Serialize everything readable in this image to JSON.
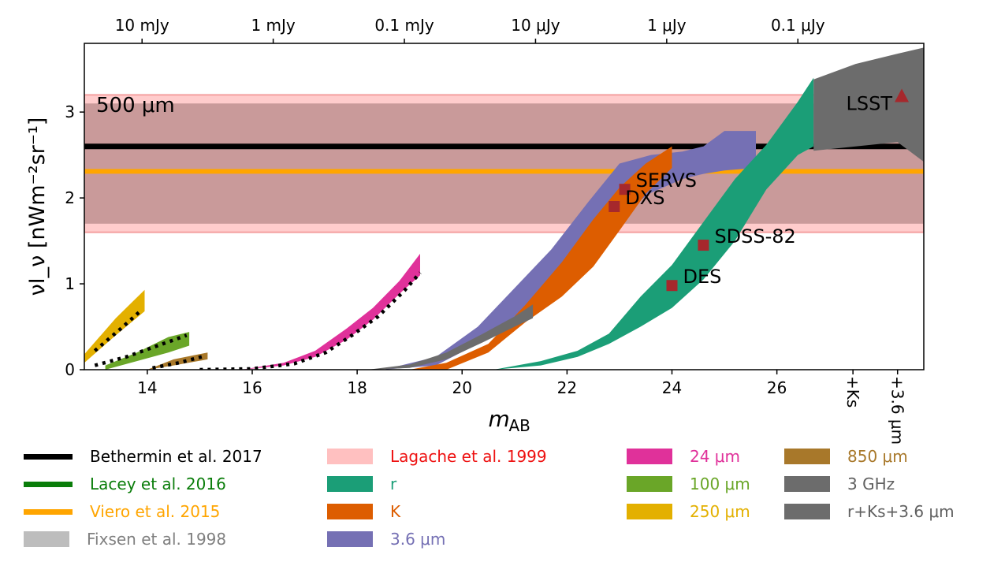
{
  "chart_data": {
    "type": "area",
    "xlabel": "m",
    "xlabel_sub": "AB",
    "ylabel": "νI_ν [nWm⁻²sr⁻¹]",
    "xlim": [
      12.8,
      28.8
    ],
    "ylim": [
      0,
      3.8
    ],
    "x_ticks": [
      14,
      16,
      18,
      20,
      22,
      24,
      26
    ],
    "x_tick_labels": [
      "14",
      "16",
      "18",
      "20",
      "22",
      "24",
      "26"
    ],
    "x_extra_labels": [
      {
        "label": "+Ks",
        "x": 27.45
      },
      {
        "label": "+3.6 μm",
        "x": 28.3
      }
    ],
    "y_ticks": [
      0,
      1,
      2,
      3
    ],
    "y_tick_labels": [
      "0",
      "1",
      "2",
      "3"
    ],
    "top_axis": {
      "ticks": [
        {
          "label": "10 mJy",
          "x": 13.9
        },
        {
          "label": "1 mJy",
          "x": 16.4
        },
        {
          "label": "0.1 mJy",
          "x": 18.9
        },
        {
          "label": "10 μJy",
          "x": 21.4
        },
        {
          "label": "1 μJy",
          "x": 23.9
        },
        {
          "label": "0.1 μJy",
          "x": 26.4
        }
      ]
    },
    "annotation": "500 μm",
    "bands": [
      {
        "name": "Lagache et al. 1999 (outer)",
        "ymin": 1.6,
        "ymax": 3.2,
        "color": "#ffcccc"
      },
      {
        "name": "Lagache et al. 1999 (inner)",
        "ymin": 1.7,
        "ymax": 3.1,
        "color": "#c99a9a"
      }
    ],
    "lines": [
      {
        "name": "Bethermin et al. 2017",
        "y": 2.6,
        "color": "#000000"
      },
      {
        "name": "Viero et al. 2015",
        "y": 2.31,
        "color": "#ffa500"
      }
    ],
    "series": [
      {
        "name": "850 μm",
        "color": "#a8782a",
        "x": [
          14.0,
          14.5,
          15.15
        ],
        "lower": [
          0.0,
          0.05,
          0.12
        ],
        "upper": [
          0.0,
          0.12,
          0.2
        ]
      },
      {
        "name": "100 μm",
        "color": "#6aa628",
        "x": [
          13.2,
          13.8,
          14.4,
          14.8
        ],
        "lower": [
          0.0,
          0.1,
          0.2,
          0.28
        ],
        "upper": [
          0.05,
          0.2,
          0.38,
          0.44
        ]
      },
      {
        "name": "250 μm",
        "color": "#e3b000",
        "x": [
          12.8,
          13.4,
          13.95
        ],
        "lower": [
          0.08,
          0.4,
          0.68
        ],
        "upper": [
          0.18,
          0.6,
          0.93
        ]
      },
      {
        "name": "24 μm",
        "color": "#e0319a",
        "x": [
          15.8,
          16.6,
          17.2,
          17.8,
          18.3,
          18.8,
          19.2
        ],
        "lower": [
          0.0,
          0.05,
          0.15,
          0.35,
          0.58,
          0.88,
          1.1
        ],
        "upper": [
          0.0,
          0.08,
          0.22,
          0.48,
          0.72,
          1.03,
          1.35
        ]
      },
      {
        "name": "3.6 μm",
        "color": "#7570b4",
        "x": [
          18.5,
          19.5,
          20.3,
          21.0,
          21.7,
          22.4,
          23.0,
          23.6,
          24.2,
          24.6,
          25.0,
          25.6
        ],
        "lower": [
          0.0,
          0.05,
          0.3,
          0.62,
          1.0,
          1.45,
          1.8,
          2.06,
          2.22,
          2.28,
          2.32,
          2.35
        ],
        "upper": [
          0.0,
          0.15,
          0.5,
          0.95,
          1.4,
          1.95,
          2.4,
          2.5,
          2.54,
          2.6,
          2.78,
          2.78
        ]
      },
      {
        "name": "K",
        "color": "#dd5d00",
        "x": [
          19.0,
          19.7,
          20.5,
          21.2,
          21.9,
          22.5,
          23.0,
          23.5,
          24.0
        ],
        "lower": [
          0.0,
          0.0,
          0.2,
          0.55,
          0.85,
          1.2,
          1.62,
          2.05,
          2.35
        ],
        "upper": [
          0.0,
          0.08,
          0.3,
          0.75,
          1.25,
          1.75,
          2.12,
          2.4,
          2.6
        ]
      },
      {
        "name": "3 GHz",
        "color": "#6c6c6c",
        "x": [
          18.2,
          19.0,
          19.7,
          20.4,
          21.0,
          21.35
        ],
        "lower": [
          0.0,
          0.02,
          0.12,
          0.32,
          0.5,
          0.6
        ],
        "upper": [
          0.0,
          0.06,
          0.2,
          0.42,
          0.62,
          0.76
        ]
      },
      {
        "name": "r",
        "color": "#1b9e77",
        "x": [
          20.6,
          21.5,
          22.2,
          22.8,
          23.4,
          24.0,
          24.6,
          25.2,
          25.8,
          26.4,
          26.7
        ],
        "lower": [
          0.0,
          0.05,
          0.15,
          0.3,
          0.5,
          0.72,
          1.05,
          1.5,
          2.1,
          2.5,
          2.6
        ],
        "upper": [
          0.0,
          0.1,
          0.22,
          0.42,
          0.85,
          1.22,
          1.72,
          2.22,
          2.62,
          3.12,
          3.4
        ]
      },
      {
        "name": "r+Ks+3.6 μm",
        "color": "#6c6c6c",
        "x": [
          26.7,
          27.5,
          28.3,
          28.8
        ],
        "lower": [
          2.55,
          2.6,
          2.65,
          2.42
        ],
        "upper": [
          3.38,
          3.56,
          3.68,
          3.75
        ]
      }
    ],
    "fits": [
      {
        "name": "250 μm model",
        "x": [
          13.0,
          13.5,
          13.9
        ],
        "y": [
          0.22,
          0.48,
          0.7
        ]
      },
      {
        "name": "100 μm model",
        "x": [
          13.0,
          13.6,
          14.2,
          14.75
        ],
        "y": [
          0.05,
          0.15,
          0.28,
          0.4
        ]
      },
      {
        "name": "850 μm model",
        "x": [
          14.1,
          14.6,
          15.1
        ],
        "y": [
          0.02,
          0.08,
          0.16
        ]
      },
      {
        "name": "24 μm model",
        "x": [
          15.0,
          16.0,
          16.8,
          17.4,
          17.9,
          18.4,
          18.9,
          19.2
        ],
        "y": [
          0.0,
          0.01,
          0.07,
          0.2,
          0.4,
          0.62,
          0.92,
          1.13
        ]
      }
    ],
    "points": [
      {
        "label": "SERVS",
        "x": 23.1,
        "y": 2.1,
        "marker": "square",
        "color": "#a6282c"
      },
      {
        "label": "DXS",
        "x": 22.9,
        "y": 1.9,
        "marker": "square",
        "color": "#a6282c"
      },
      {
        "label": "SDSS-82",
        "x": 24.6,
        "y": 1.45,
        "marker": "square",
        "color": "#a6282c"
      },
      {
        "label": "DES",
        "x": 24.0,
        "y": 0.98,
        "marker": "square",
        "color": "#a6282c"
      },
      {
        "label": "LSST",
        "x": 28.38,
        "y": 3.19,
        "marker": "triangle",
        "color": "#a6282c"
      }
    ]
  },
  "legend": [
    {
      "label": "Bethermin et al. 2017",
      "kind": "line",
      "color": "#000000",
      "text_color": "#000000"
    },
    {
      "label": "Lacey et al. 2016",
      "kind": "line",
      "color": "#0a7d0a",
      "text_color": "#0a7d0a"
    },
    {
      "label": "Viero et al. 2015",
      "kind": "line",
      "color": "#ffa500",
      "text_color": "#ffa500"
    },
    {
      "label": "Fixsen et al. 1998",
      "kind": "patch",
      "color": "#bdbdbd",
      "text_color": "#808080"
    },
    {
      "label": "Lagache et al. 1999",
      "kind": "patch",
      "color": "#ffc0c0",
      "text_color": "#ee1111"
    },
    {
      "label": "r",
      "kind": "patch",
      "color": "#1b9e77",
      "text_color": "#1b9e77"
    },
    {
      "label": "K",
      "kind": "patch",
      "color": "#dd5d00",
      "text_color": "#dd5d00"
    },
    {
      "label": "3.6 μm",
      "kind": "patch",
      "color": "#7570b4",
      "text_color": "#7570b4"
    },
    {
      "label": "24 μm",
      "kind": "patch",
      "color": "#e0319a",
      "text_color": "#e0319a"
    },
    {
      "label": "100 μm",
      "kind": "patch",
      "color": "#6aa628",
      "text_color": "#6aa628"
    },
    {
      "label": "250 μm",
      "kind": "patch",
      "color": "#e3b000",
      "text_color": "#e3b000"
    },
    {
      "label": "850 μm",
      "kind": "patch",
      "color": "#a8782a",
      "text_color": "#a8782a"
    },
    {
      "label": "3 GHz",
      "kind": "patch",
      "color": "#6c6c6c",
      "text_color": "#606060"
    },
    {
      "label": "r+Ks+3.6 μm",
      "kind": "patch",
      "color": "#6c6c6c",
      "text_color": "#606060"
    }
  ]
}
